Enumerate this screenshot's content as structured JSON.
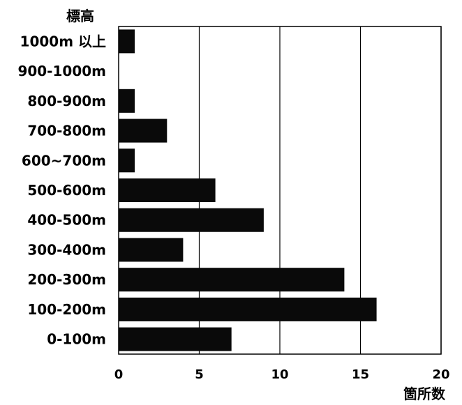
{
  "chart_data": {
    "type": "bar",
    "orientation": "horizontal",
    "ylabel": "標高",
    "xlabel": "箇所数",
    "categories": [
      "1000m 以上",
      "900-1000m",
      "800-900m",
      "700-800m",
      "600~700m",
      "500-600m",
      "400-500m",
      "300-400m",
      "200-300m",
      "100-200m",
      "0-100m"
    ],
    "values": [
      1,
      0,
      1,
      3,
      1,
      6,
      9,
      4,
      14,
      16,
      7
    ],
    "x_ticks": [
      0,
      5,
      10,
      15,
      20
    ],
    "xlim": [
      0,
      20
    ],
    "grid": "vertical",
    "colors": {
      "bar": "#0a0a0a",
      "axis": "#000000",
      "grid": "#000000"
    }
  }
}
